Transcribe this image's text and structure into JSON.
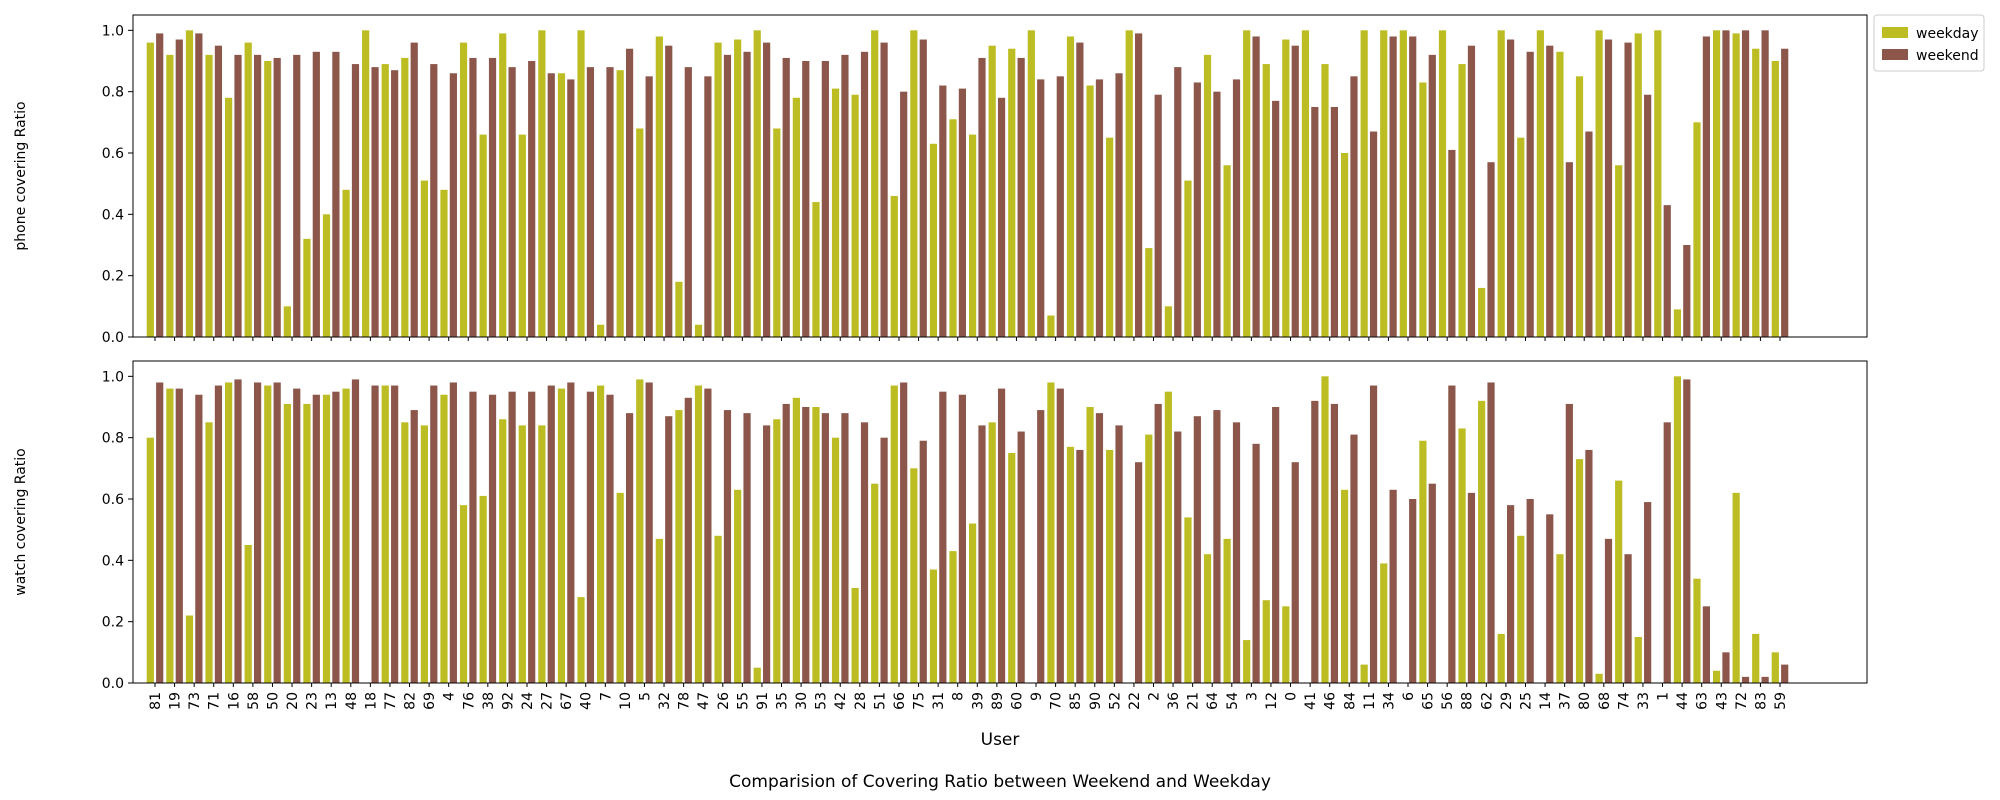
{
  "chart_data": {
    "type": "bar",
    "title": "Comparision of Covering Ratio between Weekend and Weekday",
    "xlabel": "User",
    "categories": [
      "81",
      "19",
      "73",
      "71",
      "16",
      "58",
      "50",
      "20",
      "23",
      "13",
      "48",
      "18",
      "77",
      "82",
      "69",
      "4",
      "76",
      "38",
      "92",
      "24",
      "27",
      "67",
      "40",
      "7",
      "10",
      "5",
      "32",
      "78",
      "47",
      "26",
      "55",
      "91",
      "35",
      "30",
      "53",
      "42",
      "28",
      "51",
      "66",
      "75",
      "31",
      "8",
      "39",
      "89",
      "60",
      "9",
      "70",
      "85",
      "90",
      "52",
      "22",
      "2",
      "36",
      "21",
      "64",
      "54",
      "3",
      "12",
      "0",
      "41",
      "46",
      "84",
      "11",
      "34",
      "6",
      "65",
      "56",
      "88",
      "62",
      "29",
      "25",
      "14",
      "37",
      "80",
      "68",
      "74",
      "33",
      "1",
      "44",
      "63",
      "43",
      "72",
      "83",
      "59"
    ],
    "legend": {
      "entries": [
        "weekday",
        "weekend"
      ],
      "placement": "outside right, top"
    },
    "colors": {
      "weekday": "#bcbd22",
      "weekend": "#8c564b"
    },
    "grid": false,
    "panels": [
      {
        "ylabel": "phone covering Ratio",
        "ylim": [
          0,
          1.05
        ],
        "yticks": [
          "0.0",
          "0.2",
          "0.4",
          "0.6",
          "0.8",
          "1.0"
        ],
        "series": [
          {
            "name": "weekday",
            "values": [
              0.96,
              0.92,
              1.0,
              0.92,
              0.78,
              0.96,
              0.9,
              0.1,
              0.32,
              0.4,
              0.48,
              1.0,
              0.89,
              0.91,
              0.51,
              0.48,
              0.96,
              0.66,
              0.99,
              0.66,
              1.0,
              0.86,
              1.0,
              0.04,
              0.87,
              0.68,
              0.98,
              0.18,
              0.04,
              0.96,
              0.97,
              1.0,
              0.68,
              0.78,
              0.44,
              0.81,
              0.79,
              1.0,
              0.46,
              1.0,
              0.63,
              0.71,
              0.66,
              0.95,
              0.94,
              1.0,
              0.07,
              0.98,
              0.82,
              0.65,
              1.0,
              0.29,
              0.1,
              0.51,
              0.92,
              0.56,
              1.0,
              0.89,
              0.97,
              1.0,
              0.89,
              0.6,
              1.0,
              1.0,
              1.0,
              0.83,
              1.0,
              0.89,
              0.16,
              1.0,
              0.65,
              1.0,
              0.93,
              0.85,
              1.0,
              0.56,
              0.99,
              1.0,
              0.09,
              0.7,
              1.0,
              0.99,
              0.94,
              0.9
            ]
          },
          {
            "name": "weekend",
            "values": [
              0.99,
              0.97,
              0.99,
              0.95,
              0.92,
              0.92,
              0.91,
              0.92,
              0.93,
              0.93,
              0.89,
              0.88,
              0.87,
              0.96,
              0.89,
              0.86,
              0.91,
              0.91,
              0.88,
              0.9,
              0.86,
              0.84,
              0.88,
              0.88,
              0.94,
              0.85,
              0.95,
              0.88,
              0.85,
              0.92,
              0.93,
              0.96,
              0.91,
              0.9,
              0.9,
              0.92,
              0.93,
              0.96,
              0.8,
              0.97,
              0.82,
              0.81,
              0.91,
              0.78,
              0.91,
              0.84,
              0.85,
              0.96,
              0.84,
              0.86,
              0.99,
              0.79,
              0.88,
              0.83,
              0.8,
              0.84,
              0.98,
              0.77,
              0.95,
              0.75,
              0.75,
              0.85,
              0.67,
              0.98,
              0.98,
              0.92,
              0.61,
              0.95,
              0.57,
              0.97,
              0.93,
              0.95,
              0.57,
              0.67,
              0.97,
              0.96,
              0.79,
              0.43,
              0.3,
              0.98,
              1.0,
              1.0,
              1.0,
              0.94
            ]
          }
        ]
      },
      {
        "ylabel": "watch covering Ratio",
        "ylim": [
          0,
          1.05
        ],
        "yticks": [
          "0.0",
          "0.2",
          "0.4",
          "0.6",
          "0.8",
          "1.0"
        ],
        "series": [
          {
            "name": "weekday",
            "values": [
              0.8,
              0.96,
              0.22,
              0.85,
              0.98,
              0.45,
              0.97,
              0.91,
              0.91,
              0.94,
              0.96,
              0.0,
              0.97,
              0.85,
              0.84,
              0.94,
              0.58,
              0.61,
              0.86,
              0.84,
              0.84,
              0.96,
              0.28,
              0.97,
              0.62,
              0.99,
              0.47,
              0.89,
              0.97,
              0.48,
              0.63,
              0.05,
              0.86,
              0.93,
              0.9,
              0.8,
              0.31,
              0.65,
              0.97,
              0.7,
              0.37,
              0.43,
              0.52,
              0.85,
              0.75,
              0.0,
              0.98,
              0.77,
              0.9,
              0.76,
              0.0,
              0.81,
              0.95,
              0.54,
              0.42,
              0.47,
              0.14,
              0.27,
              0.25,
              0.0,
              1.0,
              0.63,
              0.06,
              0.39,
              0.0,
              0.79,
              0.0,
              0.83,
              0.92,
              0.16,
              0.48,
              0.0,
              0.42,
              0.73,
              0.03,
              0.66,
              0.15,
              0.0,
              1.0,
              0.34,
              0.04,
              0.62,
              0.16,
              0.1
            ]
          },
          {
            "name": "weekend",
            "values": [
              0.98,
              0.96,
              0.94,
              0.97,
              0.99,
              0.98,
              0.98,
              0.96,
              0.94,
              0.95,
              0.99,
              0.97,
              0.97,
              0.89,
              0.97,
              0.98,
              0.95,
              0.94,
              0.95,
              0.95,
              0.97,
              0.98,
              0.95,
              0.94,
              0.88,
              0.98,
              0.87,
              0.93,
              0.96,
              0.89,
              0.88,
              0.84,
              0.91,
              0.9,
              0.88,
              0.88,
              0.85,
              0.8,
              0.98,
              0.79,
              0.95,
              0.94,
              0.84,
              0.96,
              0.82,
              0.89,
              0.96,
              0.76,
              0.88,
              0.84,
              0.72,
              0.91,
              0.82,
              0.87,
              0.89,
              0.85,
              0.78,
              0.9,
              0.72,
              0.92,
              0.91,
              0.81,
              0.97,
              0.63,
              0.6,
              0.65,
              0.97,
              0.62,
              0.98,
              0.58,
              0.6,
              0.55,
              0.91,
              0.76,
              0.47,
              0.42,
              0.59,
              0.85,
              0.99,
              0.25,
              0.1,
              0.02,
              0.02,
              0.06
            ]
          }
        ]
      }
    ]
  }
}
